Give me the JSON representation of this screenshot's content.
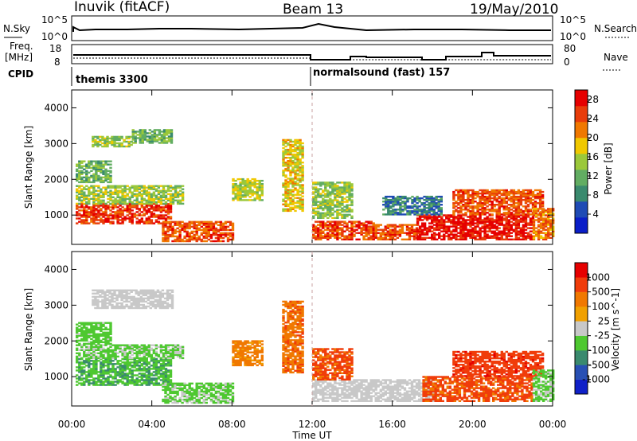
{
  "header": {
    "station": "Inuvik (fitACF)",
    "beam": "Beam 13",
    "date": "19/May/2010"
  },
  "sky_panel": {
    "left_label": "N.Sky",
    "right_label": "N.Search",
    "left_ticks": [
      "10^5",
      "10^0"
    ],
    "right_ticks": [
      "10^5",
      "10^0"
    ]
  },
  "freq_panel": {
    "left_label_1": "Freq.",
    "left_label_2": "[MHz]",
    "right_label": "Nave",
    "left_ticks": [
      "18",
      "8"
    ],
    "right_ticks": [
      "80",
      "0"
    ]
  },
  "cpid": {
    "label": "CPID",
    "segments": [
      {
        "name": "themis 3300",
        "start_hour": 0
      },
      {
        "name": "normalsound (fast) 157",
        "start_hour": 12
      }
    ]
  },
  "colors": {
    "scale": [
      "#0a1ec8",
      "#1f4bb5",
      "#3a8a6e",
      "#62ad62",
      "#9bc83a",
      "#f0c800",
      "#f07800",
      "#e83c0a",
      "#e60000"
    ],
    "velocity": [
      "#e60000",
      "#f03c0a",
      "#f07800",
      "#f0a000",
      "#c8c8c8",
      "#4ec830",
      "#3a8a6e",
      "#2850b4",
      "#1020c8"
    ],
    "ground": "#c8c8c8"
  },
  "chart_data": [
    {
      "type": "heatmap",
      "name": "power",
      "ylabel": "Slant Range [km]",
      "xlabel": "Time UT",
      "x_ticks": [
        "00:00",
        "04:00",
        "08:00",
        "12:00",
        "16:00",
        "20:00",
        "00:00"
      ],
      "xlim_hours": [
        0,
        24
      ],
      "y_ticks": [
        "1000",
        "2000",
        "3000",
        "4000"
      ],
      "ylim_km": [
        180,
        4500
      ],
      "colorbar": {
        "label": "Power [dB]",
        "ticks": [
          "4",
          "8",
          "12",
          "16",
          "20",
          "24",
          "28"
        ],
        "range": [
          0,
          30
        ]
      },
      "blobs": [
        {
          "t": [
            0.2,
            5.0
          ],
          "r": [
            750,
            1300
          ],
          "v": 26
        },
        {
          "t": [
            0.2,
            5.5
          ],
          "r": [
            1300,
            1800
          ],
          "v": 15
        },
        {
          "t": [
            0.2,
            2.0
          ],
          "r": [
            1900,
            2500
          ],
          "v": 12
        },
        {
          "t": [
            1.0,
            3.0
          ],
          "r": [
            2900,
            3200
          ],
          "v": 14
        },
        {
          "t": [
            3.0,
            5.0
          ],
          "r": [
            3000,
            3400
          ],
          "v": 12
        },
        {
          "t": [
            4.5,
            8.0
          ],
          "r": [
            250,
            800
          ],
          "v": 24
        },
        {
          "t": [
            8.0,
            9.5
          ],
          "r": [
            1400,
            2000
          ],
          "v": 16
        },
        {
          "t": [
            10.5,
            11.5
          ],
          "r": [
            1100,
            3100
          ],
          "v": 18
        },
        {
          "t": [
            12.0,
            15.0
          ],
          "r": [
            300,
            800
          ],
          "v": 25
        },
        {
          "t": [
            12.0,
            14.0
          ],
          "r": [
            900,
            1900
          ],
          "v": 14
        },
        {
          "t": [
            15.0,
            17.2
          ],
          "r": [
            300,
            750
          ],
          "v": 24
        },
        {
          "t": [
            17.2,
            23.0
          ],
          "r": [
            300,
            1000
          ],
          "v": 28
        },
        {
          "t": [
            19.0,
            23.5
          ],
          "r": [
            1000,
            1700
          ],
          "v": 24
        },
        {
          "t": [
            15.5,
            18.5
          ],
          "r": [
            1000,
            1500
          ],
          "v": 8
        },
        {
          "t": [
            23.0,
            24.0
          ],
          "r": [
            300,
            1200
          ],
          "v": 22
        }
      ]
    },
    {
      "type": "heatmap",
      "name": "velocity",
      "ylabel": "Slant Range [km]",
      "xlabel": "Time UT",
      "x_ticks": [
        "00:00",
        "04:00",
        "08:00",
        "12:00",
        "16:00",
        "20:00",
        "00:00"
      ],
      "xlim_hours": [
        0,
        24
      ],
      "y_ticks": [
        "1000",
        "2000",
        "3000",
        "4000"
      ],
      "ylim_km": [
        180,
        4500
      ],
      "colorbar": {
        "label": "Velocity [m s^-1]",
        "ticks": [
          "1000",
          "500",
          "100",
          "25",
          "-25",
          "-100",
          "-500",
          "-1000"
        ],
        "range": [
          -1000,
          1000
        ]
      },
      "blobs": [
        {
          "t": [
            0.2,
            5.0
          ],
          "r": [
            750,
            1500
          ],
          "v": -300
        },
        {
          "t": [
            0.2,
            5.5
          ],
          "r": [
            1500,
            1900
          ],
          "v": -150
        },
        {
          "t": [
            1.0,
            5.0
          ],
          "r": [
            2900,
            3400
          ],
          "v": 0,
          "ground": true
        },
        {
          "t": [
            0.2,
            2.0
          ],
          "r": [
            1900,
            2500
          ],
          "v": -200
        },
        {
          "t": [
            4.5,
            8.0
          ],
          "r": [
            250,
            800
          ],
          "v": -150
        },
        {
          "t": [
            8.0,
            9.5
          ],
          "r": [
            1300,
            2000
          ],
          "v": 400
        },
        {
          "t": [
            10.5,
            11.5
          ],
          "r": [
            1100,
            3100
          ],
          "v": 500
        },
        {
          "t": [
            12.0,
            18.0
          ],
          "r": [
            300,
            900
          ],
          "v": 0,
          "ground": true
        },
        {
          "t": [
            12.0,
            14.0
          ],
          "r": [
            900,
            1800
          ],
          "v": 600
        },
        {
          "t": [
            17.5,
            23.0
          ],
          "r": [
            300,
            1000
          ],
          "v": 600
        },
        {
          "t": [
            19.0,
            23.5
          ],
          "r": [
            1000,
            1700
          ],
          "v": 700
        },
        {
          "t": [
            23.0,
            24.0
          ],
          "r": [
            300,
            1200
          ],
          "v": -150
        }
      ]
    }
  ]
}
